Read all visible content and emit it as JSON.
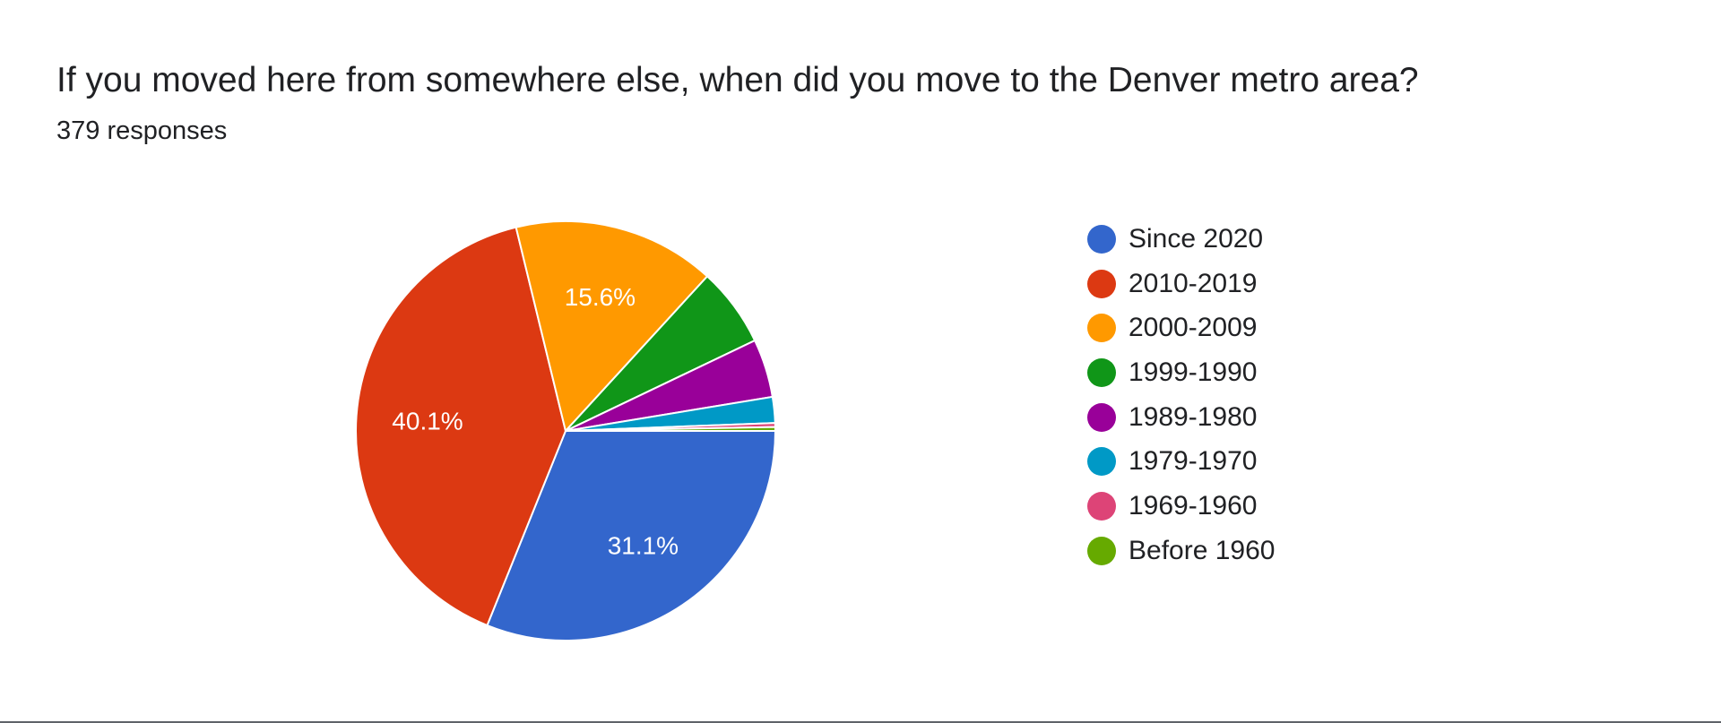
{
  "header": {
    "title": "If you moved here from somewhere else, when did you move to the Denver metro area?",
    "responses": "379 responses"
  },
  "chart_data": {
    "type": "pie",
    "title": "If you moved here from somewhere else, when did you move to the Denver metro area?",
    "subtitle": "379 responses",
    "legend_position": "right",
    "series": [
      {
        "name": "Since 2020",
        "value": 31.1,
        "color": "#3366cc",
        "label": "31.1%"
      },
      {
        "name": "2010-2019",
        "value": 40.1,
        "color": "#dc3912",
        "label": "40.1%"
      },
      {
        "name": "2000-2009",
        "value": 15.6,
        "color": "#ff9900",
        "label": "15.6%"
      },
      {
        "name": "1999-1990",
        "value": 6.1,
        "color": "#109618",
        "label": ""
      },
      {
        "name": "1989-1980",
        "value": 4.5,
        "color": "#990099",
        "label": ""
      },
      {
        "name": "1979-1970",
        "value": 2.0,
        "color": "#0099c6",
        "label": ""
      },
      {
        "name": "1969-1960",
        "value": 0.3,
        "color": "#dd4477",
        "label": ""
      },
      {
        "name": "Before 1960",
        "value": 0.3,
        "color": "#66aa00",
        "label": ""
      }
    ]
  }
}
